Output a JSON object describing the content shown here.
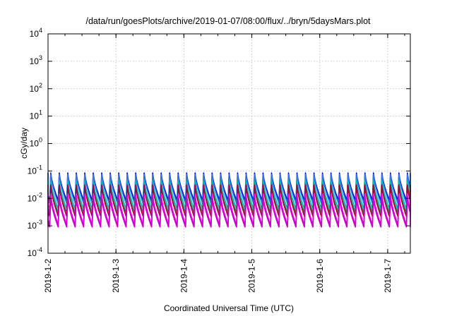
{
  "chart_data": {
    "type": "line",
    "title": "/data/run/goesPlots/archive/2019-01-07/08:00/flux/../bryn/5daysMars.plot",
    "xlabel": "Coordinated Universal Time (UTC)",
    "ylabel": "cGy/day",
    "yscale": "log",
    "ylim": [
      0.0001,
      10000
    ],
    "xlim": [
      "2019-01-02T00:00",
      "2019-01-07T08:00"
    ],
    "grid": true,
    "x_ticks": [
      "2019-1-2",
      "2019-1-3",
      "2019-1-4",
      "2019-1-5",
      "2019-1-6",
      "2019-1-7"
    ],
    "y_ticks": [
      {
        "value": 0.0001,
        "base": "10",
        "exp": "-4"
      },
      {
        "value": 0.001,
        "base": "10",
        "exp": "-3"
      },
      {
        "value": 0.01,
        "base": "10",
        "exp": "-2"
      },
      {
        "value": 0.1,
        "base": "10",
        "exp": "-1"
      },
      {
        "value": 1,
        "base": "10",
        "exp": "0"
      },
      {
        "value": 10,
        "base": "10",
        "exp": "1"
      },
      {
        "value": 100,
        "base": "10",
        "exp": "2"
      },
      {
        "value": 1000,
        "base": "10",
        "exp": "3"
      },
      {
        "value": 10000,
        "base": "10",
        "exp": "4"
      }
    ],
    "pattern": {
      "period_hours": 3.0,
      "phase_hours": 0.6
    },
    "series": [
      {
        "color": "#0000cc",
        "peak": 0.085,
        "trough": 0.0085
      },
      {
        "color": "#3377ee",
        "peak": 0.075,
        "trough": 0.0065
      },
      {
        "color": "#00bbbb",
        "peak": 0.045,
        "trough": 0.0042
      },
      {
        "color": "#118866",
        "peak": 0.032,
        "trough": 0.003
      },
      {
        "color": "#aa0033",
        "peak": 0.03,
        "trough": 0.0022
      },
      {
        "color": "#ee00ee",
        "peak": 0.014,
        "trough": 0.0011
      },
      {
        "color": "#cc00cc",
        "peak": 0.01,
        "trough": 0.0009
      }
    ]
  }
}
